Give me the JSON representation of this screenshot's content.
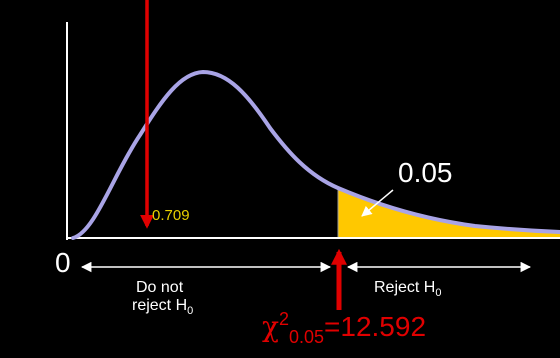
{
  "diagram": {
    "origin_label": "0",
    "tail_probability": "0.05",
    "test_statistic_value": "0.709",
    "left_region": {
      "line1": "Do not",
      "line2": "reject H",
      "subscript": "0"
    },
    "right_region": {
      "text": "Reject H",
      "subscript": "0"
    },
    "critical_value": {
      "symbol": "χ",
      "superscript": "2",
      "subscript": "0.05",
      "value": "=12.592"
    }
  },
  "colors": {
    "background": "#000000",
    "axes": "#ffffff",
    "curve": "#a9a4e6",
    "rejection_fill": "#ffc800",
    "marker_arrows": "#e00000",
    "statistic_label": "#e8d000",
    "critical_label": "#e00000",
    "text": "#ffffff"
  }
}
